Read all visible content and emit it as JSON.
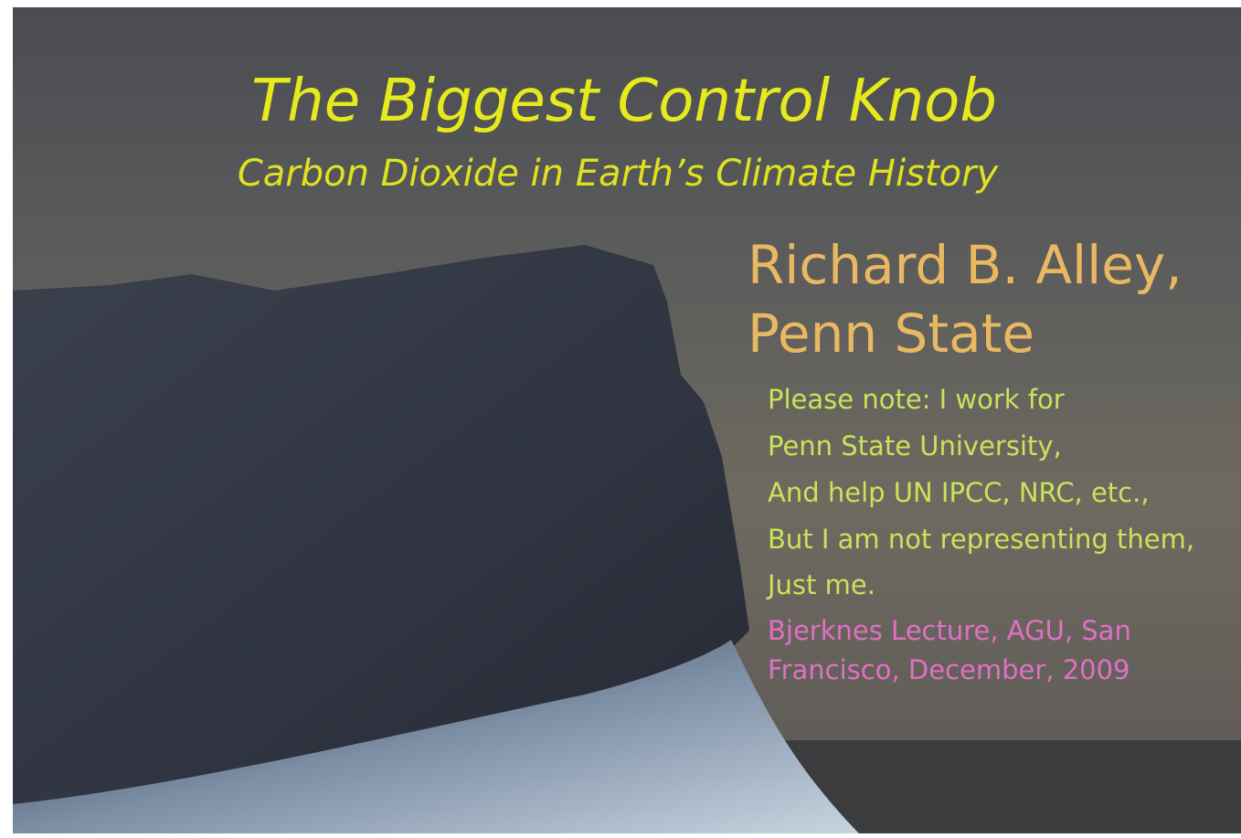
{
  "slide": {
    "title": "The Biggest Control Knob",
    "subtitle": "Carbon Dioxide in Earth’s Climate History",
    "author": [
      "Richard B. Alley,",
      "Penn State"
    ],
    "note": [
      "Please note: I work for",
      "Penn State University,",
      "And help UN IPCC, NRC, etc.,",
      "But I am not representing them,",
      "Just me."
    ],
    "lecture": [
      "Bjerknes Lecture, AGU, San",
      "Francisco, December, 2009"
    ]
  }
}
